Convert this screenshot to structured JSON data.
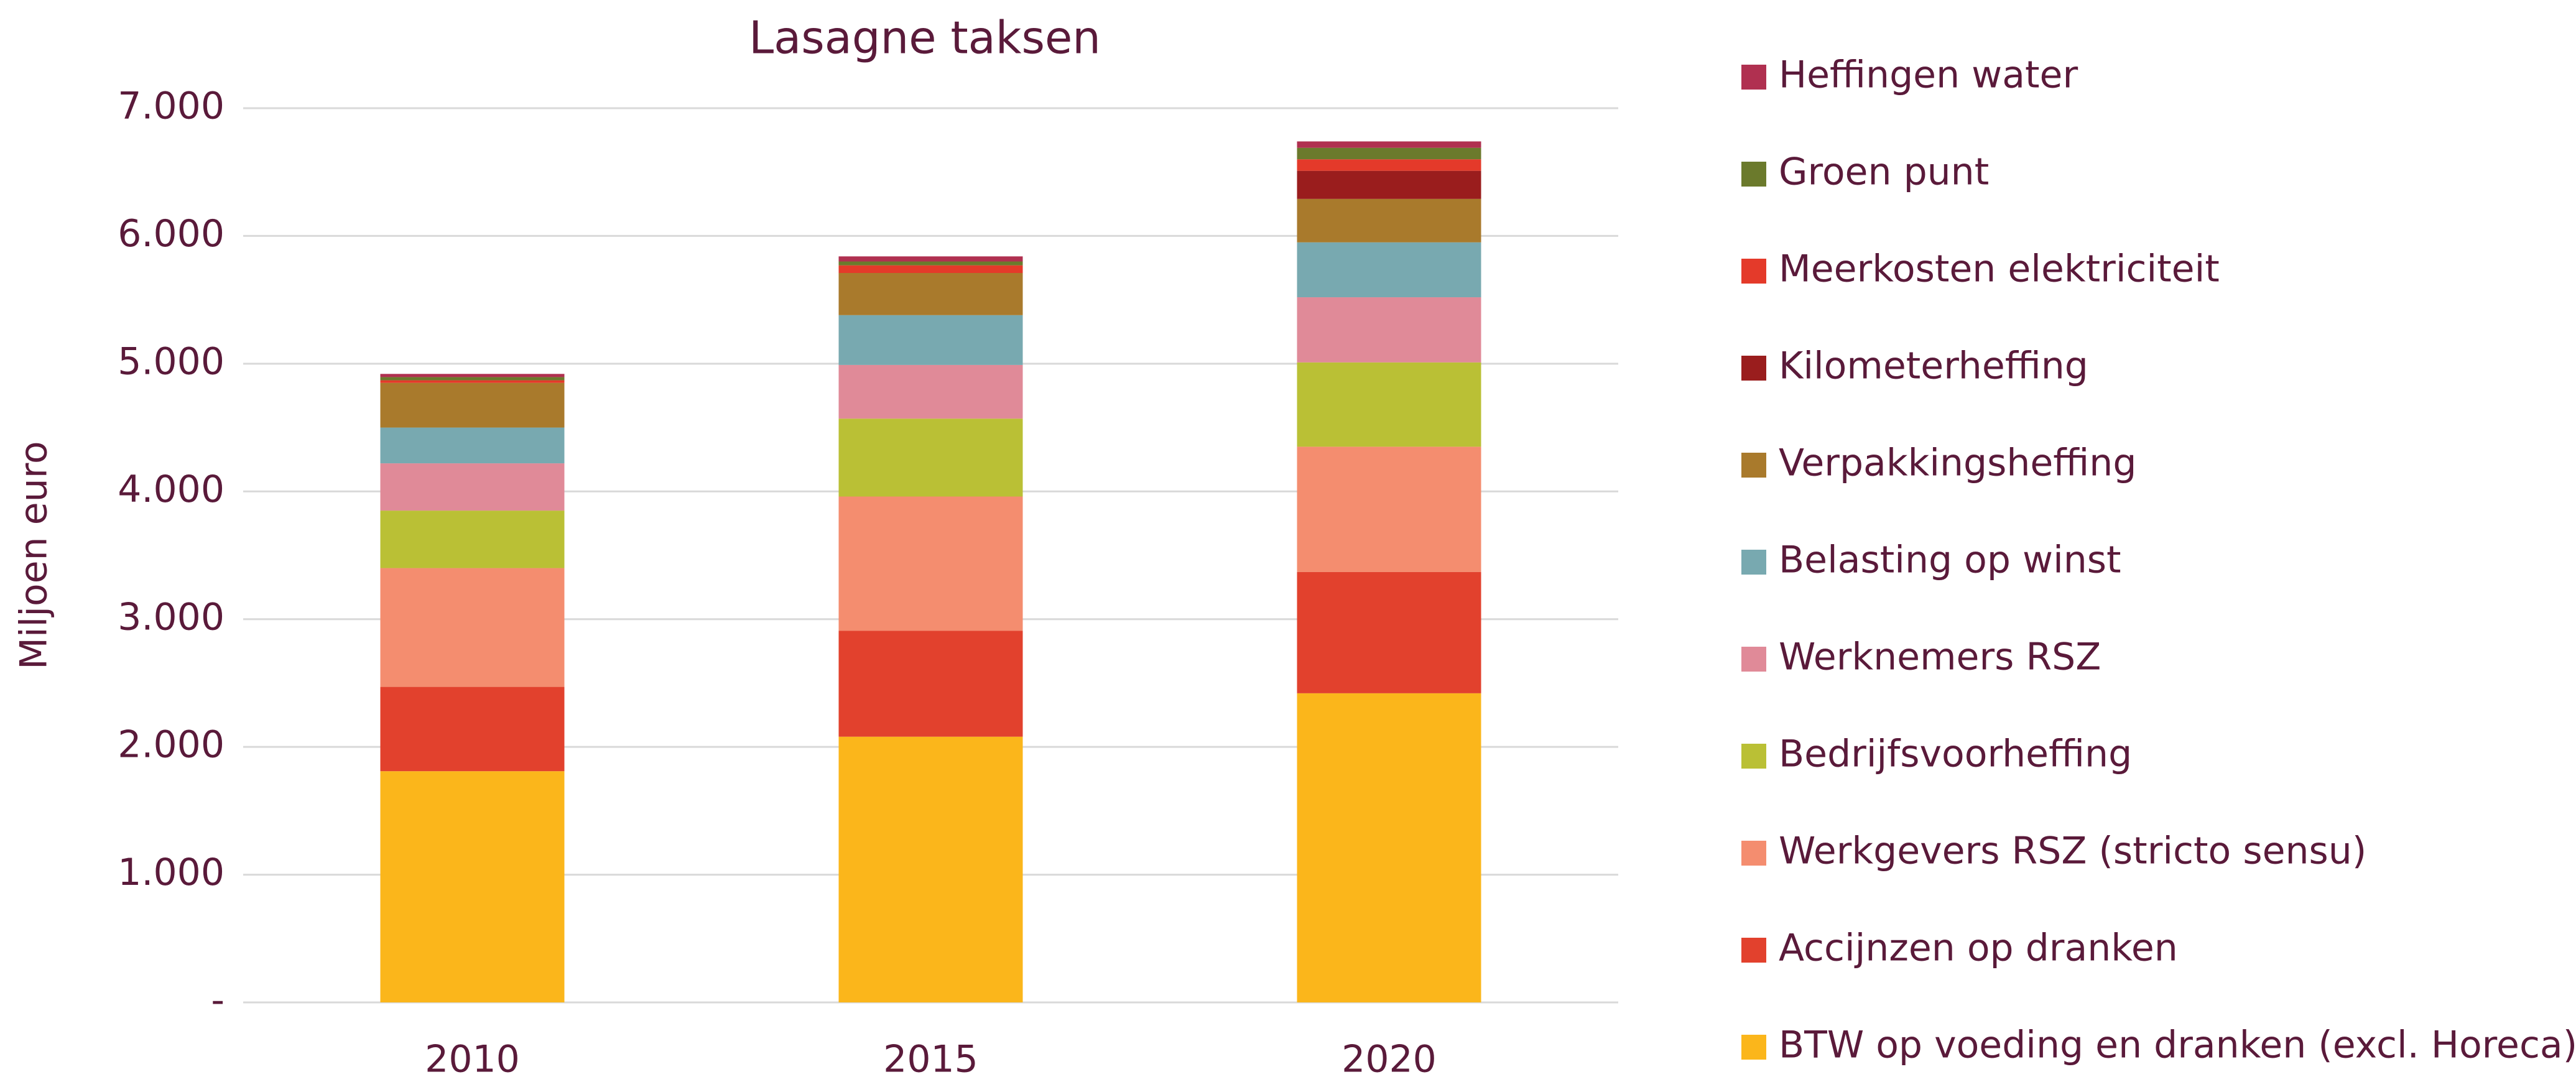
{
  "chart_data": {
    "type": "stacked_bar",
    "title": "Lasagne taksen",
    "y_label": "Miljoen euro",
    "categories": [
      "2010",
      "2015",
      "2020"
    ],
    "series": [
      {
        "name": "BTW op voeding en dranken (excl. Horeca)",
        "color": "#fbb61b",
        "values": [
          1810,
          2080,
          2420
        ]
      },
      {
        "name": "Accijnzen op dranken",
        "color": "#e2412d",
        "values": [
          660,
          830,
          950
        ]
      },
      {
        "name": "Werkgevers RSZ (stricto sensu)",
        "color": "#f48d6f",
        "values": [
          930,
          1050,
          980
        ]
      },
      {
        "name": "Bedrijfsvoorheffing",
        "color": "#bac035",
        "values": [
          450,
          610,
          660
        ]
      },
      {
        "name": "Werknemers RSZ",
        "color": "#e08a98",
        "values": [
          370,
          420,
          510
        ]
      },
      {
        "name": "Belasting op winst",
        "color": "#78a9b0",
        "values": [
          280,
          390,
          430
        ]
      },
      {
        "name": "Verpakkingsheffing",
        "color": "#a97a2c",
        "values": [
          350,
          330,
          340
        ]
      },
      {
        "name": "Kilometerheffing",
        "color": "#9a1d1d",
        "values": [
          0,
          0,
          220
        ]
      },
      {
        "name": "Meerkosten elektriciteit",
        "color": "#e43a2a",
        "values": [
          20,
          60,
          90
        ]
      },
      {
        "name": "Groen punt",
        "color": "#6b7a2c",
        "values": [
          25,
          30,
          90
        ]
      },
      {
        "name": "Heffingen water",
        "color": "#b03050",
        "values": [
          25,
          40,
          50
        ]
      }
    ],
    "ylim": [
      0,
      7000
    ],
    "yticks": [
      {
        "value": 0,
        "label": "-"
      },
      {
        "value": 1000,
        "label": "1.000"
      },
      {
        "value": 2000,
        "label": "2.000"
      },
      {
        "value": 3000,
        "label": "3.000"
      },
      {
        "value": 4000,
        "label": "4.000"
      },
      {
        "value": 5000,
        "label": "5.000"
      },
      {
        "value": 6000,
        "label": "6.000"
      },
      {
        "value": 7000,
        "label": "7.000"
      }
    ],
    "grid": true,
    "legend": "right"
  }
}
